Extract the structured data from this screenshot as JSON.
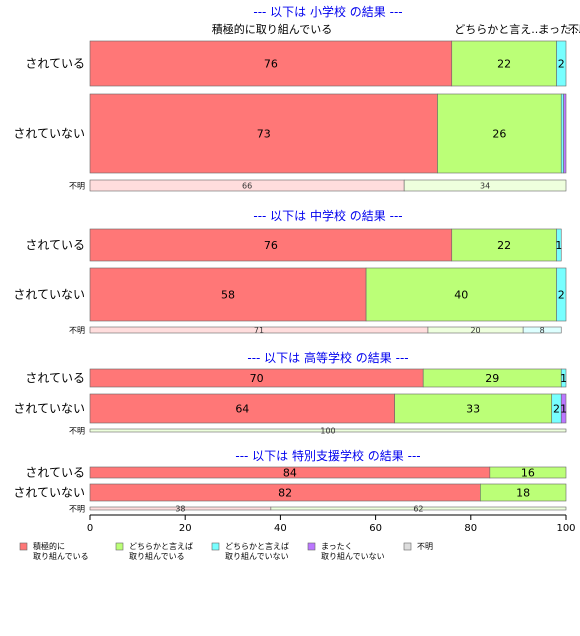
{
  "chart_data": {
    "type": "bar",
    "orientation": "horizontal",
    "stacked": true,
    "percent": true,
    "xlim": [
      0,
      100
    ],
    "x_ticks": [
      "0",
      "20",
      "40",
      "60",
      "80",
      "100"
    ],
    "categories": [
      "積極的に取り組んでいる",
      "どちらかと言えば取り組んでいる",
      "どちらかと言えば取り組んでいない",
      "まったく取り組んでいない",
      "不明"
    ],
    "legend": [
      {
        "line1": "積極的に",
        "line2": "取り組んでいる",
        "color": "#ff7777"
      },
      {
        "line1": "どちらかと言えば",
        "line2": "取り組んでいる",
        "color": "#bbff77"
      },
      {
        "line1": "どちらかと言えば",
        "line2": "取り組んでいない",
        "color": "#77ffff"
      },
      {
        "line1": "まったく",
        "line2": "取り組んでいない",
        "color": "#bb77ff"
      },
      {
        "line1": "不明",
        "line2": "",
        "color": "#dddddd"
      }
    ],
    "legend_position": "bottom",
    "top_labels": [
      "積極的に取り組んでいる",
      "どちらかと言え...",
      "まった...",
      "不明"
    ],
    "panels": [
      {
        "title": "--- 以下は 小学校 の結果 ---",
        "rows": [
          {
            "label": "されている",
            "values": [
              76,
              22,
              2,
              0,
              0
            ],
            "labels": [
              "76",
              "22",
              "2",
              "",
              ""
            ]
          },
          {
            "label": "されていない",
            "values": [
              73,
              26,
              0.5,
              0.5,
              0
            ],
            "labels": [
              "73",
              "26",
              "",
              "",
              ""
            ]
          },
          {
            "label": "不明",
            "values": [
              66,
              34,
              0,
              0,
              0
            ],
            "labels": [
              "66",
              "34",
              "",
              "",
              ""
            ]
          }
        ]
      },
      {
        "title": "--- 以下は 中学校 の結果 ---",
        "rows": [
          {
            "label": "されている",
            "values": [
              76,
              22,
              1,
              0,
              0
            ],
            "labels": [
              "76",
              "22",
              "1",
              "",
              ""
            ]
          },
          {
            "label": "されていない",
            "values": [
              58,
              40,
              2,
              0,
              0
            ],
            "labels": [
              "58",
              "40",
              "2",
              "",
              ""
            ]
          },
          {
            "label": "不明",
            "values": [
              71,
              20,
              8,
              0,
              0
            ],
            "labels": [
              "71",
              "20",
              "8",
              "",
              ""
            ]
          }
        ]
      },
      {
        "title": "--- 以下は 高等学校 の結果 ---",
        "rows": [
          {
            "label": "されている",
            "values": [
              70,
              29,
              1,
              0,
              0
            ],
            "labels": [
              "70",
              "29",
              "1",
              "",
              ""
            ]
          },
          {
            "label": "されていない",
            "values": [
              64,
              33,
              2,
              1,
              0
            ],
            "labels": [
              "64",
              "33",
              "2",
              "1",
              ""
            ]
          },
          {
            "label": "不明",
            "values": [
              0,
              100,
              0,
              0,
              0
            ],
            "labels": [
              "",
              "100",
              "",
              "",
              ""
            ]
          }
        ]
      },
      {
        "title": "--- 以下は 特別支援学校 の結果 ---",
        "rows": [
          {
            "label": "されている",
            "values": [
              84,
              16,
              0,
              0,
              0
            ],
            "labels": [
              "84",
              "16",
              "",
              "",
              ""
            ]
          },
          {
            "label": "されていない",
            "values": [
              82,
              18,
              0,
              0,
              0
            ],
            "labels": [
              "82",
              "18",
              "",
              "",
              ""
            ]
          },
          {
            "label": "不明",
            "values": [
              38,
              62,
              0,
              0,
              0
            ],
            "labels": [
              "38",
              "62",
              "",
              "",
              ""
            ]
          }
        ]
      }
    ]
  }
}
